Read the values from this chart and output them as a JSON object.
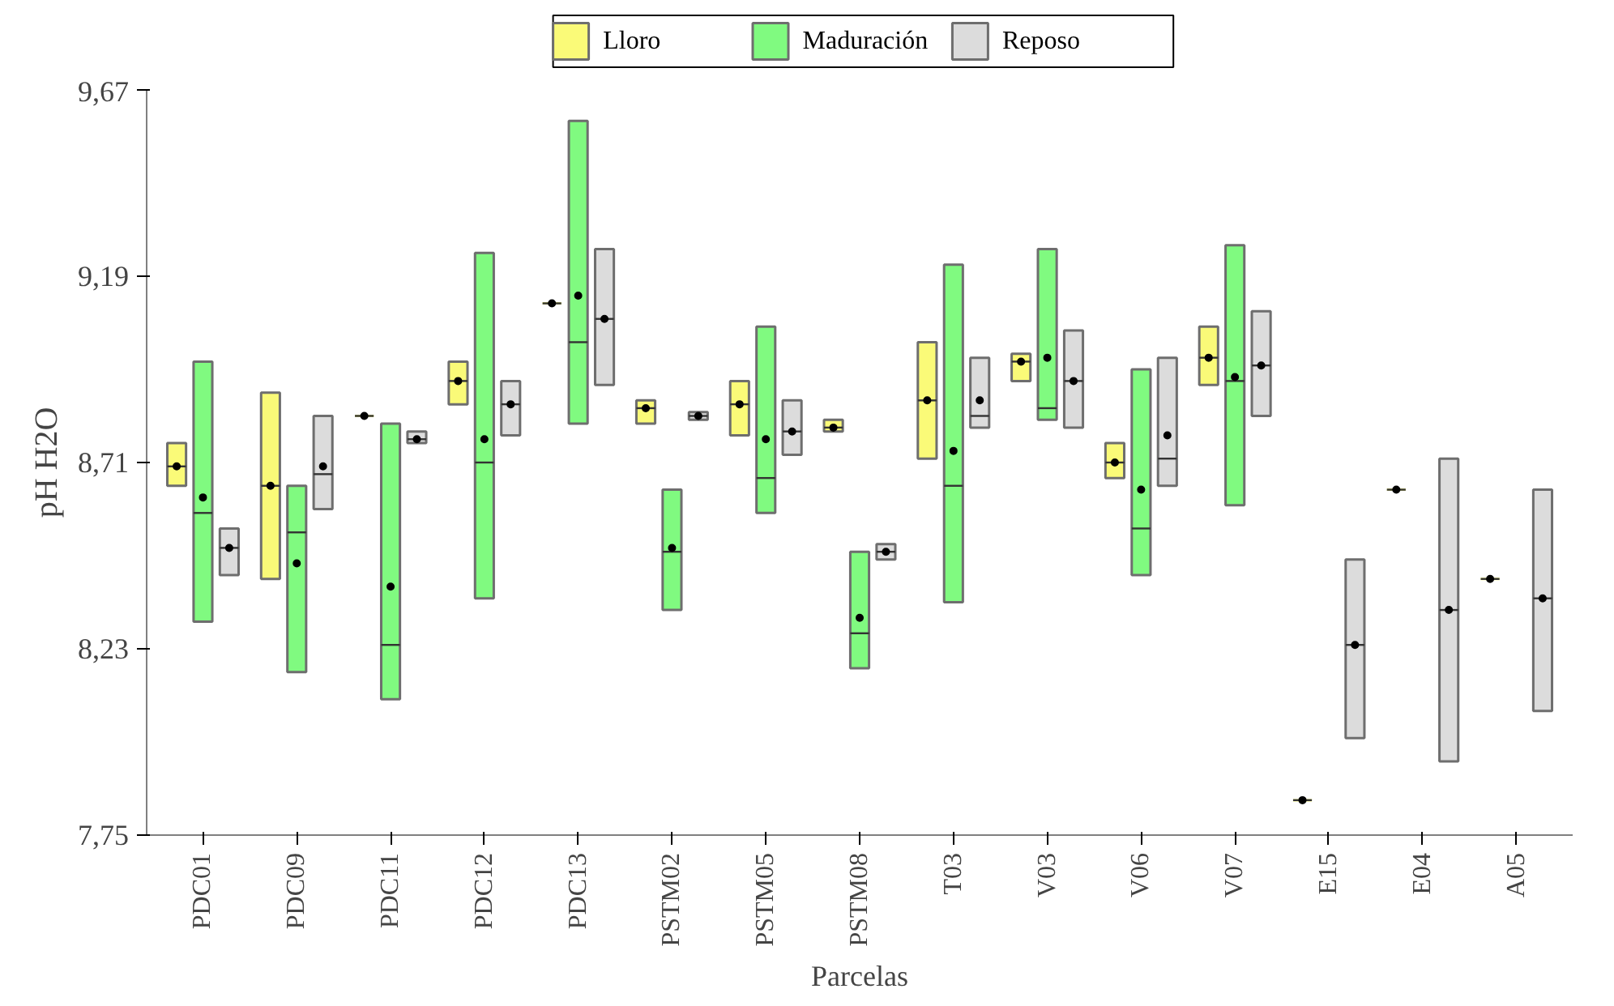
{
  "chart_data": {
    "type": "box",
    "xlabel": "Parcelas",
    "ylabel": "pH H2O",
    "categories": [
      "PDC01",
      "PDC09",
      "PDC11",
      "PDC12",
      "PDC13",
      "PSTM02",
      "PSTM05",
      "PSTM08",
      "T03",
      "V03",
      "V06",
      "V07",
      "E15",
      "E04",
      "A05"
    ],
    "ylim": [
      7.75,
      9.67
    ],
    "yticks": [
      {
        "value": 7.75,
        "label": "7,75"
      },
      {
        "value": 8.23,
        "label": "8,23"
      },
      {
        "value": 8.71,
        "label": "8,71"
      },
      {
        "value": 9.19,
        "label": "9,19"
      },
      {
        "value": 9.67,
        "label": "9,67"
      }
    ],
    "grid": false,
    "legend": "top",
    "series": [
      {
        "name": "Lloro",
        "color": "#fafa78",
        "boxes": [
          {
            "low": 8.65,
            "q1": 8.65,
            "median": 8.7,
            "q3": 8.76,
            "high": 8.76,
            "mean": 8.7
          },
          {
            "low": 8.41,
            "q1": 8.41,
            "median": 8.65,
            "q3": 8.89,
            "high": 8.89,
            "mean": 8.65
          },
          {
            "low": 8.83,
            "q1": 8.83,
            "median": 8.83,
            "q3": 8.83,
            "high": 8.83,
            "mean": 8.83
          },
          {
            "low": 8.86,
            "q1": 8.86,
            "median": 8.92,
            "q3": 8.97,
            "high": 8.97,
            "mean": 8.92
          },
          {
            "low": 9.12,
            "q1": 9.12,
            "median": 9.12,
            "q3": 9.12,
            "high": 9.12,
            "mean": 9.12
          },
          {
            "low": 8.81,
            "q1": 8.81,
            "median": 8.85,
            "q3": 8.87,
            "high": 8.87,
            "mean": 8.85
          },
          {
            "low": 8.78,
            "q1": 8.78,
            "median": 8.86,
            "q3": 8.92,
            "high": 8.92,
            "mean": 8.86
          },
          {
            "low": 8.79,
            "q1": 8.79,
            "median": 8.8,
            "q3": 8.82,
            "high": 8.82,
            "mean": 8.8
          },
          {
            "low": 8.72,
            "q1": 8.72,
            "median": 8.87,
            "q3": 9.02,
            "high": 9.02,
            "mean": 8.87
          },
          {
            "low": 8.92,
            "q1": 8.92,
            "median": 8.97,
            "q3": 8.99,
            "high": 8.99,
            "mean": 8.97
          },
          {
            "low": 8.67,
            "q1": 8.67,
            "median": 8.71,
            "q3": 8.76,
            "high": 8.76,
            "mean": 8.71
          },
          {
            "low": 8.91,
            "q1": 8.91,
            "median": 8.98,
            "q3": 9.06,
            "high": 9.06,
            "mean": 8.98
          },
          {
            "low": 7.84,
            "q1": 7.84,
            "median": 7.84,
            "q3": 7.84,
            "high": 7.84,
            "mean": 7.84
          },
          {
            "low": 8.64,
            "q1": 8.64,
            "median": 8.64,
            "q3": 8.64,
            "high": 8.64,
            "mean": 8.64
          },
          {
            "low": 8.41,
            "q1": 8.41,
            "median": 8.41,
            "q3": 8.41,
            "high": 8.41,
            "mean": 8.41
          }
        ]
      },
      {
        "name": "Maduración",
        "color": "#80fa80",
        "boxes": [
          {
            "low": 8.3,
            "q1": 8.3,
            "median": 8.58,
            "q3": 8.97,
            "high": 8.97,
            "mean": 8.62
          },
          {
            "low": 8.17,
            "q1": 8.17,
            "median": 8.53,
            "q3": 8.65,
            "high": 8.65,
            "mean": 8.45
          },
          {
            "low": 8.1,
            "q1": 8.1,
            "median": 8.24,
            "q3": 8.81,
            "high": 8.81,
            "mean": 8.39
          },
          {
            "low": 8.36,
            "q1": 8.36,
            "median": 8.71,
            "q3": 9.25,
            "high": 9.25,
            "mean": 8.77
          },
          {
            "low": 8.81,
            "q1": 8.81,
            "median": 9.02,
            "q3": 9.59,
            "high": 9.59,
            "mean": 9.14
          },
          {
            "low": 8.33,
            "q1": 8.33,
            "median": 8.48,
            "q3": 8.64,
            "high": 8.64,
            "mean": 8.49
          },
          {
            "low": 8.58,
            "q1": 8.58,
            "median": 8.67,
            "q3": 9.06,
            "high": 9.06,
            "mean": 8.77
          },
          {
            "low": 8.18,
            "q1": 8.18,
            "median": 8.27,
            "q3": 8.48,
            "high": 8.48,
            "mean": 8.31
          },
          {
            "low": 8.35,
            "q1": 8.35,
            "median": 8.65,
            "q3": 9.22,
            "high": 9.22,
            "mean": 8.74
          },
          {
            "low": 8.82,
            "q1": 8.82,
            "median": 8.85,
            "q3": 9.26,
            "high": 9.26,
            "mean": 8.98
          },
          {
            "low": 8.42,
            "q1": 8.42,
            "median": 8.54,
            "q3": 8.95,
            "high": 8.95,
            "mean": 8.64
          },
          {
            "low": 8.6,
            "q1": 8.6,
            "median": 8.92,
            "q3": 9.27,
            "high": 9.27,
            "mean": 8.93
          },
          null,
          null,
          null
        ]
      },
      {
        "name": "Reposo",
        "color": "#dcdcdc",
        "boxes": [
          {
            "low": 8.42,
            "q1": 8.42,
            "median": 8.49,
            "q3": 8.54,
            "high": 8.54,
            "mean": 8.49
          },
          {
            "low": 8.59,
            "q1": 8.59,
            "median": 8.68,
            "q3": 8.83,
            "high": 8.83,
            "mean": 8.7
          },
          {
            "low": 8.76,
            "q1": 8.76,
            "median": 8.77,
            "q3": 8.79,
            "high": 8.79,
            "mean": 8.77
          },
          {
            "low": 8.78,
            "q1": 8.78,
            "median": 8.86,
            "q3": 8.92,
            "high": 8.92,
            "mean": 8.86
          },
          {
            "low": 8.91,
            "q1": 8.91,
            "median": 9.08,
            "q3": 9.26,
            "high": 9.26,
            "mean": 9.08
          },
          {
            "low": 8.82,
            "q1": 8.82,
            "median": 8.83,
            "q3": 8.84,
            "high": 8.84,
            "mean": 8.83
          },
          {
            "low": 8.73,
            "q1": 8.73,
            "median": 8.79,
            "q3": 8.87,
            "high": 8.87,
            "mean": 8.79
          },
          {
            "low": 8.46,
            "q1": 8.46,
            "median": 8.48,
            "q3": 8.5,
            "high": 8.5,
            "mean": 8.48
          },
          {
            "low": 8.8,
            "q1": 8.8,
            "median": 8.83,
            "q3": 8.98,
            "high": 8.98,
            "mean": 8.87
          },
          {
            "low": 8.8,
            "q1": 8.8,
            "median": 8.92,
            "q3": 9.05,
            "high": 9.05,
            "mean": 8.92
          },
          {
            "low": 8.65,
            "q1": 8.65,
            "median": 8.72,
            "q3": 8.98,
            "high": 8.98,
            "mean": 8.78
          },
          {
            "low": 8.83,
            "q1": 8.83,
            "median": 8.96,
            "q3": 9.1,
            "high": 9.1,
            "mean": 8.96
          },
          {
            "low": 8.0,
            "q1": 8.0,
            "median": 8.24,
            "q3": 8.46,
            "high": 8.46,
            "mean": 8.24
          },
          {
            "low": 7.94,
            "q1": 7.94,
            "median": 8.33,
            "q3": 8.72,
            "high": 8.72,
            "mean": 8.33
          },
          {
            "low": 8.07,
            "q1": 8.07,
            "median": 8.36,
            "q3": 8.64,
            "high": 8.64,
            "mean": 8.36
          }
        ]
      }
    ]
  }
}
